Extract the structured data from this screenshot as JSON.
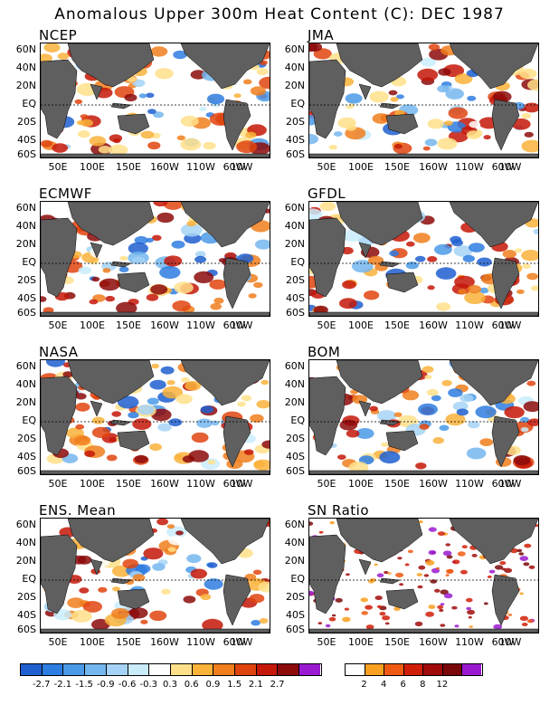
{
  "title": "Anomalous Upper 300m Heat Content (C): DEC 1987",
  "panels": [
    "NCEP",
    "JMA",
    "ECMWF",
    "GFDL",
    "NASA",
    "BOM",
    "ENS. Mean",
    "SN Ratio"
  ],
  "lat_labels": [
    "60N",
    "40N",
    "20N",
    "EQ",
    "20S",
    "40S",
    "60S"
  ],
  "lon_labels": [
    "50E",
    "100E",
    "150E",
    "160W",
    "110W",
    "60W",
    "10W"
  ],
  "colorbar_left": {
    "colors": [
      "#1f5fd0",
      "#2e7de0",
      "#4a9ae8",
      "#74b6ef",
      "#a6d3f5",
      "#c9ecfb",
      "#ffffff",
      "#ffe08a",
      "#f9b23a",
      "#f07e1c",
      "#e0440e",
      "#c41808",
      "#8c0a0a",
      "#9a1ad0"
    ],
    "labels": [
      "-2.7",
      "-2.1",
      "-1.5",
      "-0.9",
      "-0.6",
      "-0.3",
      "0.3",
      "0.6",
      "0.9",
      "1.5",
      "2.1",
      "2.7"
    ]
  },
  "colorbar_right": {
    "colors": [
      "#ffffff",
      "#f9a020",
      "#ef5a12",
      "#d01e08",
      "#a00a0a",
      "#7a0808",
      "#9a1ad0"
    ],
    "labels": [
      "2",
      "4",
      "6",
      "8",
      "12"
    ]
  }
}
